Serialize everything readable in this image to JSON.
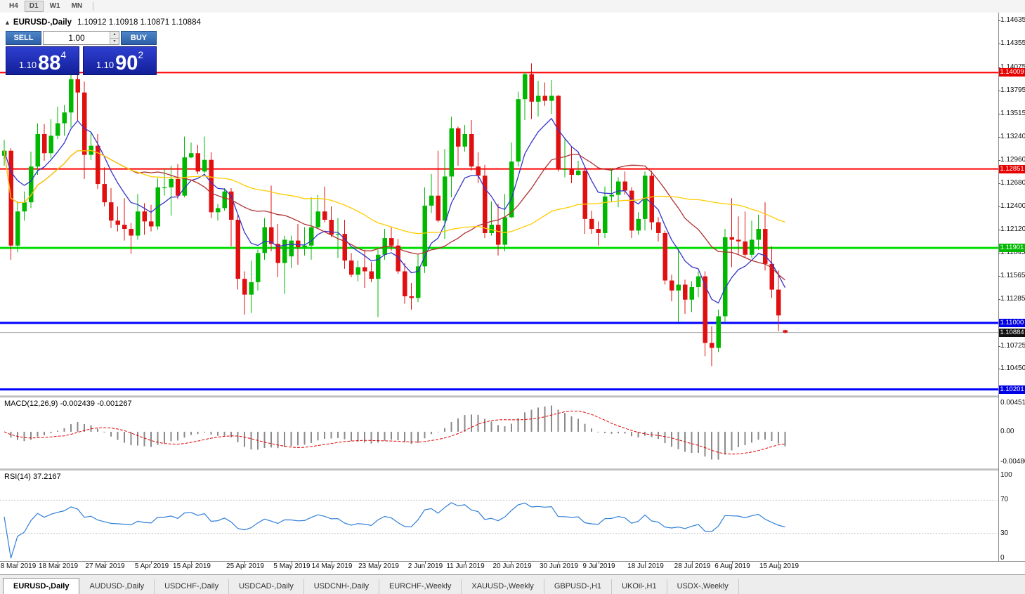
{
  "toolbar": {
    "timeframes": [
      "H4",
      "D1",
      "W1",
      "MN"
    ],
    "active": "D1"
  },
  "chart_header": {
    "collapse_icon": "▲",
    "symbol": "EURUSD-,Daily",
    "ohlc": "1.10912 1.10918 1.10871 1.10884"
  },
  "trade_panel": {
    "sell_label": "SELL",
    "buy_label": "BUY",
    "volume": "1.00",
    "spin_up": "▴",
    "spin_down": "▾",
    "sell_price": {
      "prefix": "1.10",
      "big": "88",
      "pip": "4"
    },
    "buy_price": {
      "prefix": "1.10",
      "big": "90",
      "pip": "2"
    }
  },
  "price_axis": {
    "ticks": [
      "1.14635",
      "1.14355",
      "1.14075",
      "1.13795",
      "1.13515",
      "1.13240",
      "1.12960",
      "1.12680",
      "1.12400",
      "1.12120",
      "1.11845",
      "1.11565",
      "1.11285",
      "1.10725",
      "1.10450"
    ]
  },
  "hlines": [
    {
      "value": 1.14009,
      "label": "1.14009",
      "color": "#FF0000",
      "width": 2,
      "tag": "#E60000"
    },
    {
      "value": 1.12851,
      "label": "1.12851",
      "color": "#FF0000",
      "width": 2,
      "tag": "#E60000"
    },
    {
      "value": 1.11901,
      "label": "1.11901",
      "color": "#00DD00",
      "width": 3,
      "tag": "#00B900"
    },
    {
      "value": 1.11,
      "label": "1.11000",
      "color": "#0000FF",
      "width": 3,
      "tag": "#0000E6"
    },
    {
      "value": 1.10201,
      "label": "1.10201",
      "color": "#0000FF",
      "width": 3,
      "tag": "#0000E6"
    }
  ],
  "bid": {
    "value": 1.10884,
    "label": "1.10884",
    "tag": "#101010"
  },
  "macd": {
    "label": "MACD(12,26,9) -0.002439 -0.001267",
    "axis": [
      {
        "text": "0.004517",
        "value": 0.004517
      },
      {
        "text": "0.00",
        "value": 0
      },
      {
        "text": "-0.004806",
        "value": -0.004806
      }
    ],
    "range": {
      "max": 0.0054,
      "min": -0.00575
    },
    "histogram_color": "#8A8A8A",
    "signal_color": "#E00000"
  },
  "rsi": {
    "label": "RSI(14) 37.2167",
    "axis": [
      {
        "text": "100",
        "value": 100
      },
      {
        "text": "70",
        "value": 70
      },
      {
        "text": "30",
        "value": 30
      },
      {
        "text": "0",
        "value": 0
      }
    ],
    "levels": [
      70,
      30
    ],
    "line_color": "#2F7ED8"
  },
  "date_axis": [
    {
      "text": "8 Mar 2019",
      "idx": 2
    },
    {
      "text": "18 Mar 2019",
      "idx": 8
    },
    {
      "text": "27 Mar 2019",
      "idx": 15
    },
    {
      "text": "5 Apr 2019",
      "idx": 22
    },
    {
      "text": "15 Apr 2019",
      "idx": 28
    },
    {
      "text": "25 Apr 2019",
      "idx": 36
    },
    {
      "text": "5 May 2019",
      "idx": 43
    },
    {
      "text": "14 May 2019",
      "idx": 49
    },
    {
      "text": "23 May 2019",
      "idx": 56
    },
    {
      "text": "2 Jun 2019",
      "idx": 63
    },
    {
      "text": "11 Jun 2019",
      "idx": 69
    },
    {
      "text": "20 Jun 2019",
      "idx": 76
    },
    {
      "text": "30 Jun 2019",
      "idx": 83
    },
    {
      "text": "9 Jul 2019",
      "idx": 89
    },
    {
      "text": "18 Jul 2019",
      "idx": 96
    },
    {
      "text": "28 Jul 2019",
      "idx": 103
    },
    {
      "text": "6 Aug 2019",
      "idx": 109
    },
    {
      "text": "15 Aug 2019",
      "idx": 116
    }
  ],
  "tabs": {
    "items": [
      "EURUSD-,Daily",
      "AUDUSD-,Daily",
      "USDCHF-,Daily",
      "USDCAD-,Daily",
      "USDCNH-,Daily",
      "EURCHF-,Weekly",
      "XAUUSD-,Weekly",
      "GBPUSD-,H1",
      "UKOil-,H1",
      "USDX-,Weekly"
    ],
    "active": 0
  },
  "chart_data": {
    "type": "candlestick",
    "title": "EURUSD-,Daily",
    "timeframe": "Daily",
    "ohlc_current": {
      "open": "1.10912",
      "high": "1.10918",
      "low": "1.10871",
      "close": "1.10884"
    },
    "price_range": {
      "min": 1.1013,
      "max": 1.1473
    },
    "up_color": "#00B800",
    "down_color": "#E01010",
    "ma": [
      {
        "type": "ema",
        "period": 8,
        "color": "#3434C8"
      },
      {
        "type": "sma",
        "period": 20,
        "color": "#B03030"
      },
      {
        "type": "sma",
        "period": 45,
        "color": "#FFCC00"
      }
    ],
    "candles": [
      [
        1.1301,
        1.132,
        1.1289,
        1.1307
      ],
      [
        1.1307,
        1.131,
        1.1176,
        1.1193
      ],
      [
        1.1193,
        1.1246,
        1.1185,
        1.1234
      ],
      [
        1.1234,
        1.1258,
        1.1223,
        1.1245
      ],
      [
        1.1245,
        1.1306,
        1.1238,
        1.1288
      ],
      [
        1.1288,
        1.134,
        1.1278,
        1.1327
      ],
      [
        1.1327,
        1.1339,
        1.1295,
        1.1304
      ],
      [
        1.1304,
        1.1345,
        1.1298,
        1.1325
      ],
      [
        1.1325,
        1.136,
        1.1321,
        1.134
      ],
      [
        1.134,
        1.1362,
        1.1325,
        1.1353
      ],
      [
        1.1353,
        1.1402,
        1.1335,
        1.1393
      ],
      [
        1.1393,
        1.1398,
        1.1343,
        1.1377
      ],
      [
        1.1377,
        1.139,
        1.1273,
        1.1302
      ],
      [
        1.1302,
        1.133,
        1.1296,
        1.1313
      ],
      [
        1.1313,
        1.1327,
        1.1261,
        1.1267
      ],
      [
        1.1267,
        1.1287,
        1.124,
        1.1245
      ],
      [
        1.1245,
        1.1262,
        1.1214,
        1.1223
      ],
      [
        1.1223,
        1.124,
        1.121,
        1.1218
      ],
      [
        1.1218,
        1.125,
        1.1199,
        1.1213
      ],
      [
        1.1213,
        1.122,
        1.1183,
        1.1205
      ],
      [
        1.1205,
        1.1255,
        1.12,
        1.1234
      ],
      [
        1.1234,
        1.1244,
        1.1206,
        1.1222
      ],
      [
        1.1222,
        1.1242,
        1.121,
        1.1216
      ],
      [
        1.1216,
        1.1274,
        1.1212,
        1.1263
      ],
      [
        1.1263,
        1.1285,
        1.1253,
        1.1263
      ],
      [
        1.1263,
        1.1289,
        1.1229,
        1.1273
      ],
      [
        1.1273,
        1.1291,
        1.1249,
        1.1253
      ],
      [
        1.1253,
        1.1324,
        1.1251,
        1.1299
      ],
      [
        1.1299,
        1.1317,
        1.1298,
        1.1304
      ],
      [
        1.1304,
        1.1314,
        1.1279,
        1.1282
      ],
      [
        1.1282,
        1.1324,
        1.128,
        1.1296
      ],
      [
        1.1296,
        1.1305,
        1.1226,
        1.1233
      ],
      [
        1.1233,
        1.1243,
        1.1223,
        1.1238
      ],
      [
        1.1238,
        1.1262,
        1.1235,
        1.1258
      ],
      [
        1.1258,
        1.1262,
        1.1192,
        1.1224
      ],
      [
        1.1224,
        1.123,
        1.114,
        1.1153
      ],
      [
        1.1153,
        1.1162,
        1.111,
        1.1134
      ],
      [
        1.1134,
        1.1175,
        1.1112,
        1.1149
      ],
      [
        1.1149,
        1.1188,
        1.1139,
        1.1184
      ],
      [
        1.1184,
        1.1226,
        1.1176,
        1.1215
      ],
      [
        1.1215,
        1.1265,
        1.1186,
        1.1195
      ],
      [
        1.1195,
        1.1219,
        1.1155,
        1.1172
      ],
      [
        1.1172,
        1.1205,
        1.1135,
        1.12
      ],
      [
        1.118,
        1.1205,
        1.1166,
        1.1199
      ],
      [
        1.1199,
        1.1219,
        1.117,
        1.1191
      ],
      [
        1.1191,
        1.1215,
        1.1181,
        1.1193
      ],
      [
        1.1193,
        1.1251,
        1.1176,
        1.1215
      ],
      [
        1.1215,
        1.1254,
        1.1214,
        1.1234
      ],
      [
        1.1234,
        1.1264,
        1.1221,
        1.1224
      ],
      [
        1.1224,
        1.124,
        1.1203,
        1.1206
      ],
      [
        1.1206,
        1.1226,
        1.1178,
        1.1207
      ],
      [
        1.1207,
        1.1224,
        1.1165,
        1.1175
      ],
      [
        1.1175,
        1.1184,
        1.1155,
        1.1158
      ],
      [
        1.1158,
        1.1175,
        1.115,
        1.1167
      ],
      [
        1.1167,
        1.1188,
        1.1142,
        1.1162
      ],
      [
        1.1162,
        1.1173,
        1.1149,
        1.1153
      ],
      [
        1.1153,
        1.1188,
        1.1107,
        1.1182
      ],
      [
        1.1182,
        1.1213,
        1.1176,
        1.1202
      ],
      [
        1.1202,
        1.1215,
        1.1187,
        1.1193
      ],
      [
        1.1193,
        1.1201,
        1.1159,
        1.1162
      ],
      [
        1.1162,
        1.1172,
        1.1123,
        1.1132
      ],
      [
        1.1132,
        1.1148,
        1.1116,
        1.113
      ],
      [
        1.113,
        1.1182,
        1.1125,
        1.1168
      ],
      [
        1.1168,
        1.1263,
        1.116,
        1.1241
      ],
      [
        1.1241,
        1.1279,
        1.1232,
        1.1253
      ],
      [
        1.1253,
        1.1307,
        1.1221,
        1.1223
      ],
      [
        1.1223,
        1.1309,
        1.1201,
        1.1276
      ],
      [
        1.1276,
        1.1348,
        1.1251,
        1.1334
      ],
      [
        1.1334,
        1.1336,
        1.1289,
        1.1312
      ],
      [
        1.1312,
        1.1338,
        1.1306,
        1.1327
      ],
      [
        1.1327,
        1.1344,
        1.1283,
        1.1288
      ],
      [
        1.1288,
        1.1305,
        1.1268,
        1.1277
      ],
      [
        1.1277,
        1.129,
        1.1202,
        1.1208
      ],
      [
        1.1208,
        1.1246,
        1.1205,
        1.1218
      ],
      [
        1.1218,
        1.1243,
        1.1181,
        1.1194
      ],
      [
        1.1194,
        1.1255,
        1.1186,
        1.1227
      ],
      [
        1.1227,
        1.1317,
        1.1226,
        1.1294
      ],
      [
        1.1294,
        1.1378,
        1.1288,
        1.1369
      ],
      [
        1.1369,
        1.1402,
        1.1344,
        1.1399
      ],
      [
        1.1399,
        1.1412,
        1.1345,
        1.1366
      ],
      [
        1.1366,
        1.1391,
        1.1348,
        1.1373
      ],
      [
        1.1373,
        1.1389,
        1.1361,
        1.1367
      ],
      [
        1.1367,
        1.1392,
        1.1351,
        1.1373
      ],
      [
        1.1373,
        1.1374,
        1.1282,
        1.1285
      ],
      [
        1.1285,
        1.1322,
        1.1275,
        1.1285
      ],
      [
        1.1285,
        1.1312,
        1.1268,
        1.1278
      ],
      [
        1.1278,
        1.1295,
        1.1277,
        1.1283
      ],
      [
        1.1283,
        1.1289,
        1.1207,
        1.1225
      ],
      [
        1.1225,
        1.1235,
        1.1207,
        1.1213
      ],
      [
        1.1213,
        1.1222,
        1.1193,
        1.1208
      ],
      [
        1.1208,
        1.1264,
        1.1202,
        1.1252
      ],
      [
        1.1252,
        1.1286,
        1.1245,
        1.1254
      ],
      [
        1.1254,
        1.1275,
        1.1239,
        1.127
      ],
      [
        1.127,
        1.1282,
        1.1254,
        1.1259
      ],
      [
        1.1259,
        1.1263,
        1.1202,
        1.1211
      ],
      [
        1.1211,
        1.1233,
        1.1206,
        1.1225
      ],
      [
        1.1225,
        1.1282,
        1.1211,
        1.1277
      ],
      [
        1.1277,
        1.1283,
        1.1212,
        1.1221
      ],
      [
        1.1221,
        1.1227,
        1.1198,
        1.1208
      ],
      [
        1.1208,
        1.1211,
        1.1146,
        1.1151
      ],
      [
        1.1151,
        1.1158,
        1.1126,
        1.1139
      ],
      [
        1.1139,
        1.1188,
        1.1101,
        1.1146
      ],
      [
        1.1146,
        1.1152,
        1.1111,
        1.1128
      ],
      [
        1.1128,
        1.115,
        1.1113,
        1.1143
      ],
      [
        1.1143,
        1.1162,
        1.1131,
        1.1156
      ],
      [
        1.1156,
        1.1162,
        1.106,
        1.1076
      ],
      [
        1.1076,
        1.1096,
        1.1048,
        1.107
      ],
      [
        1.107,
        1.1116,
        1.1065,
        1.1108
      ],
      [
        1.1108,
        1.1213,
        1.1101,
        1.1203
      ],
      [
        1.1203,
        1.125,
        1.1167,
        1.12
      ],
      [
        1.12,
        1.1228,
        1.1183,
        1.1198
      ],
      [
        1.1198,
        1.1234,
        1.1178,
        1.1182
      ],
      [
        1.1182,
        1.1223,
        1.1178,
        1.12
      ],
      [
        1.12,
        1.123,
        1.1188,
        1.1213
      ],
      [
        1.1213,
        1.1245,
        1.1163,
        1.1171
      ],
      [
        1.1171,
        1.1192,
        1.113,
        1.114
      ],
      [
        1.114,
        1.1163,
        1.109,
        1.1109
      ],
      [
        1.10912,
        1.10918,
        1.10871,
        1.10884
      ]
    ]
  }
}
